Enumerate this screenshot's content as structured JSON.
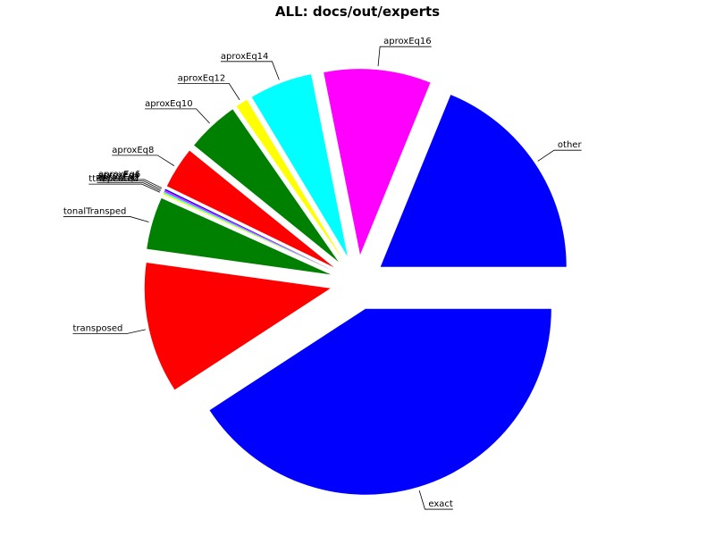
{
  "chart_data": {
    "type": "pie",
    "title": "ALL: docs/out/experts",
    "slices": [
      {
        "label": "other",
        "value": 16.2,
        "color": "#0000ff"
      },
      {
        "label": "aproxEq16",
        "value": 8.0,
        "color": "#ff00ff"
      },
      {
        "label": "aproxEq14",
        "value": 4.7,
        "color": "#00ffff"
      },
      {
        "label": "aproxEq12",
        "value": 0.9,
        "color": "#ffff00"
      },
      {
        "label": "aproxEq10",
        "value": 3.9,
        "color": "#008000"
      },
      {
        "label": "aproxEq8",
        "value": 3.1,
        "color": "#ff0000"
      },
      {
        "label": "aproxEq6",
        "value": 0.1,
        "color": "#0000ff"
      },
      {
        "label": "aproxEq4",
        "value": 0.1,
        "color": "#ff00ff"
      },
      {
        "label": "aproxEq2",
        "value": 0.1,
        "color": "#00ffff"
      },
      {
        "label": "ttRepeated",
        "value": 0.1,
        "color": "#ffff00"
      },
      {
        "label": "tonalTransped",
        "value": 3.9,
        "color": "#008000"
      },
      {
        "label": "transposed",
        "value": 9.8,
        "color": "#ff0000"
      },
      {
        "label": "exact",
        "value": 35.1,
        "color": "#0000ff"
      }
    ]
  }
}
